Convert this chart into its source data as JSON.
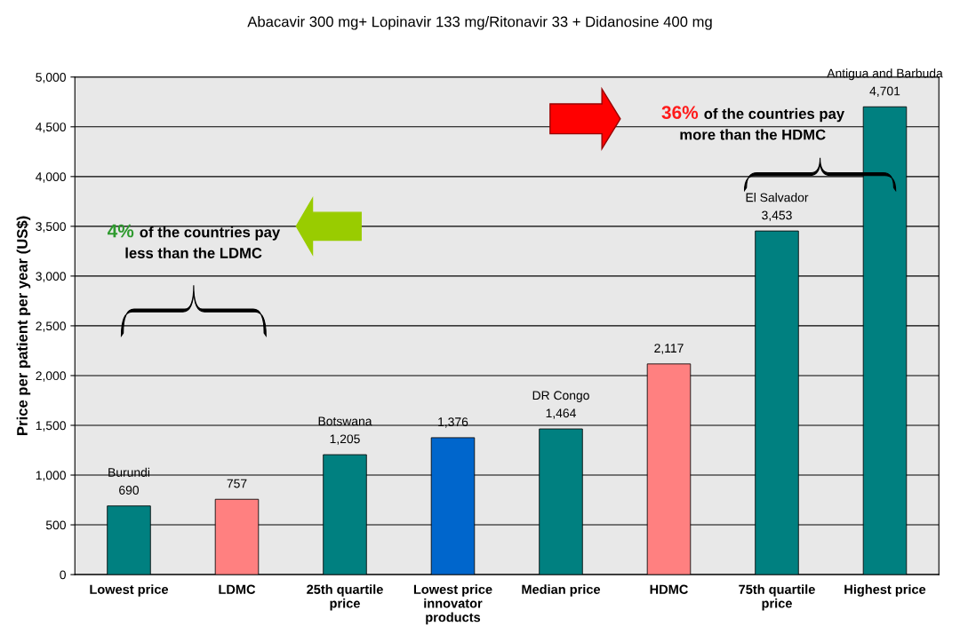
{
  "chart_data": {
    "type": "bar",
    "title": "Abacavir 300 mg+ Lopinavir 133 mg/Ritonavir 33 + Didanosine 400 mg",
    "ylabel": "Price per patient per year (US$)",
    "categories": [
      "Lowest price",
      "LDMC",
      "25th quartile\nprice",
      "Lowest price\ninnovator\nproducts",
      "Median price",
      "HDMC",
      "75th quartile\nprice",
      "Highest price"
    ],
    "values": [
      690,
      757,
      1205,
      1376,
      1464,
      2117,
      3453,
      4701
    ],
    "colors": [
      "#008080",
      "#ff8080",
      "#008080",
      "#0066cc",
      "#008080",
      "#ff8080",
      "#008080",
      "#008080"
    ],
    "value_labels": [
      "Burundi\n690",
      "757",
      "Botswana\n1,205",
      "1,376",
      "DR Congo\n1,464",
      "2,117",
      "El Salvador\n3,453",
      "Antigua and Barbuda\n4,701"
    ],
    "ylim": [
      0,
      5000
    ],
    "yticks": [
      0,
      500,
      {
        "value": 1000,
        "label": "1,000"
      },
      {
        "value": 1500,
        "label": "1,500"
      },
      {
        "value": 2000,
        "label": "2,000"
      },
      {
        "value": 2500,
        "label": "2,500"
      },
      {
        "value": 3000,
        "label": "3,000"
      },
      {
        "value": 3500,
        "label": "3,500"
      },
      {
        "value": 4000,
        "label": "4,000"
      },
      {
        "value": 4500,
        "label": "4,500"
      },
      {
        "value": 5000,
        "label": "5,000"
      }
    ],
    "grid": "y",
    "annotations": [
      "4% of the countries pay\nless than the LDMC",
      "36% of the countries pay\nmore than the HDMC"
    ]
  }
}
